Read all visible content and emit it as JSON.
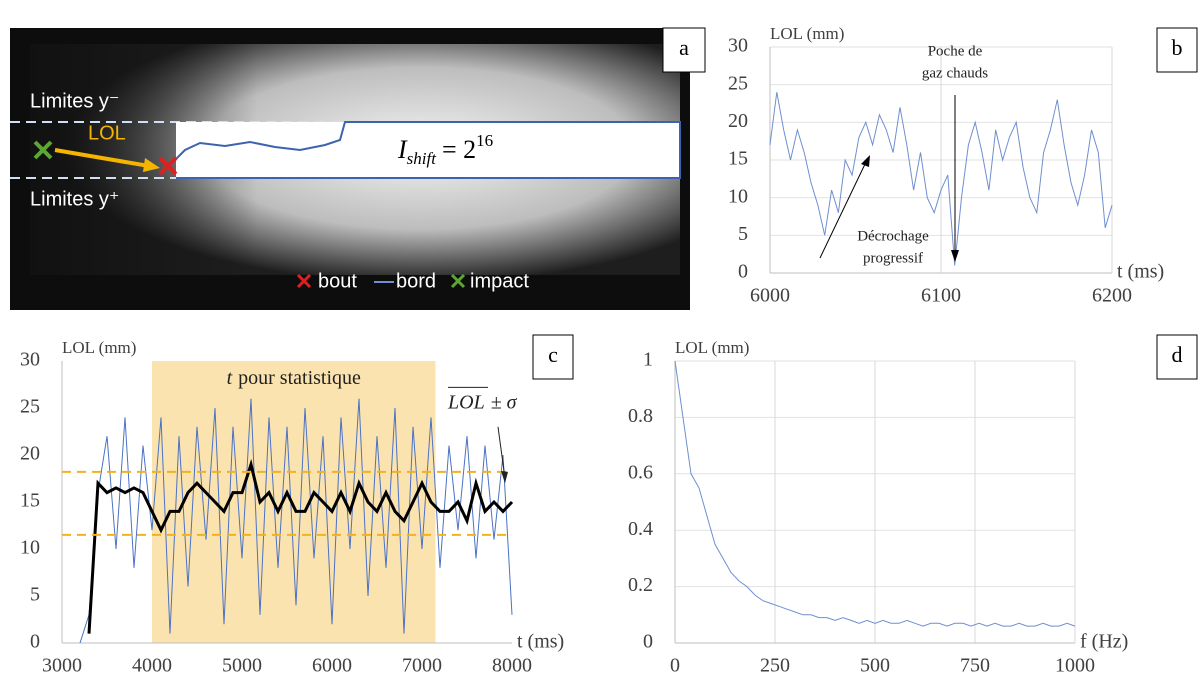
{
  "image_panel": {
    "panel_label": "a",
    "upper_limit_label": "Limites y⁻",
    "lower_limit_label": "Limites y⁺",
    "lol_label": "LOL",
    "formula": {
      "symbol": "I",
      "subscript": "shift",
      "equals": "= 2",
      "exponent": "16"
    },
    "legend": [
      "bout",
      "bord",
      "impact"
    ]
  },
  "chart_data": [
    {
      "type": "line",
      "panel_label": "b",
      "ylabel": "LOL (mm)",
      "xlabel": "t (ms)",
      "xlim": [
        6000,
        6200
      ],
      "ylim": [
        0,
        30
      ],
      "xticks": [
        6000,
        6100,
        6200
      ],
      "yticks": [
        0,
        5,
        10,
        15,
        20,
        25,
        30
      ],
      "grid": true,
      "annotations": [
        {
          "lines": [
            "Poche de",
            "gaz chauds"
          ]
        },
        {
          "lines": [
            "Décrochage",
            "progressif"
          ]
        }
      ],
      "series": [
        {
          "color": "#6f8fd0",
          "x": [
            6000,
            6004,
            6008,
            6012,
            6016,
            6020,
            6024,
            6028,
            6032,
            6036,
            6040,
            6044,
            6048,
            6052,
            6056,
            6060,
            6064,
            6068,
            6072,
            6076,
            6080,
            6084,
            6088,
            6092,
            6096,
            6100,
            6104,
            6108,
            6112,
            6116,
            6120,
            6124,
            6128,
            6132,
            6136,
            6140,
            6144,
            6148,
            6152,
            6156,
            6160,
            6164,
            6168,
            6172,
            6176,
            6180,
            6184,
            6188,
            6192,
            6196,
            6200
          ],
          "values": [
            17,
            24,
            19,
            15,
            19,
            16,
            12,
            9,
            5,
            11,
            8,
            15,
            13,
            18,
            20,
            17,
            21,
            19,
            16,
            22,
            17,
            11,
            16,
            10,
            8,
            11,
            13,
            1,
            10,
            17,
            20,
            16,
            11,
            19,
            15,
            18,
            20,
            14,
            10,
            8,
            16,
            19,
            23,
            17,
            12,
            9,
            13,
            19,
            16,
            6,
            9
          ]
        }
      ]
    },
    {
      "type": "line",
      "panel_label": "c",
      "ylabel": "LOL (mm)",
      "xlabel": "t (ms)",
      "xlim": [
        3000,
        8000
      ],
      "ylim": [
        0,
        30
      ],
      "xticks": [
        3000,
        4000,
        5000,
        6000,
        7000,
        8000
      ],
      "yticks": [
        0,
        5,
        10,
        15,
        20,
        25,
        30
      ],
      "grid": false,
      "xspan": [
        4000,
        7150
      ],
      "xspan_color": "#fbe3b0",
      "xspan_label_var": "t",
      "xspan_label": "pour statistique",
      "hlines": [
        18.2,
        11.5
      ],
      "hline_color": "#f2b21c",
      "mean_label": "LOL",
      "spread_label": "± σ",
      "series": [
        {
          "color": "#4a72c4",
          "x": [
            3200,
            3300,
            3400,
            3500,
            3600,
            3700,
            3800,
            3900,
            4000,
            4100,
            4200,
            4300,
            4400,
            4500,
            4600,
            4700,
            4800,
            4900,
            5000,
            5100,
            5200,
            5300,
            5400,
            5500,
            5600,
            5700,
            5800,
            5900,
            6000,
            6100,
            6200,
            6300,
            6400,
            6500,
            6600,
            6700,
            6800,
            6900,
            7000,
            7100,
            7200,
            7300,
            7400,
            7500,
            7600,
            7700,
            7800,
            7900,
            8000
          ],
          "values": [
            0,
            3,
            16,
            22,
            10,
            24,
            8,
            21,
            12,
            24,
            1,
            22,
            6,
            23,
            11,
            25,
            2,
            23,
            9,
            26,
            3,
            24,
            8,
            23,
            4,
            25,
            9,
            22,
            2,
            24,
            10,
            26,
            5,
            22,
            8,
            25,
            1,
            23,
            10,
            24,
            8,
            21,
            12,
            22,
            9,
            21,
            11,
            20,
            3
          ]
        },
        {
          "color": "#000000",
          "x": [
            3300,
            3400,
            3500,
            3600,
            3700,
            3800,
            3900,
            4000,
            4100,
            4200,
            4300,
            4400,
            4500,
            4600,
            4700,
            4800,
            4900,
            5000,
            5100,
            5200,
            5300,
            5400,
            5500,
            5600,
            5700,
            5800,
            5900,
            6000,
            6100,
            6200,
            6300,
            6400,
            6500,
            6600,
            6700,
            6800,
            6900,
            7000,
            7100,
            7200,
            7300,
            7400,
            7500,
            7600,
            7700,
            7800,
            7900,
            8000
          ],
          "values": [
            1,
            17,
            16,
            16.5,
            16,
            16.5,
            16,
            14,
            12,
            14,
            14,
            16,
            17,
            16,
            15,
            14,
            16,
            16,
            19,
            15,
            16,
            14,
            16,
            14,
            14,
            16,
            15,
            14,
            16,
            14,
            17,
            15,
            14,
            16,
            14,
            13,
            15,
            17,
            15,
            14,
            14,
            15,
            13,
            17,
            14,
            15,
            14,
            15
          ]
        }
      ]
    },
    {
      "type": "line",
      "panel_label": "d",
      "ylabel": "LOL (mm)",
      "xlabel": "f (Hz)",
      "xlim": [
        0,
        1000
      ],
      "ylim": [
        0,
        1
      ],
      "xticks": [
        0,
        250,
        500,
        750,
        1000
      ],
      "yticks": [
        0,
        0.2,
        0.4,
        0.6,
        0.8,
        1
      ],
      "grid": true,
      "series": [
        {
          "color": "#6f8fd0",
          "x": [
            0,
            20,
            40,
            60,
            80,
            100,
            120,
            140,
            160,
            180,
            200,
            220,
            240,
            260,
            280,
            300,
            320,
            340,
            360,
            380,
            400,
            420,
            440,
            460,
            480,
            500,
            520,
            540,
            560,
            580,
            600,
            620,
            640,
            660,
            680,
            700,
            720,
            740,
            760,
            780,
            800,
            820,
            840,
            860,
            880,
            900,
            920,
            940,
            960,
            980,
            1000
          ],
          "values": [
            1,
            0.8,
            0.6,
            0.55,
            0.45,
            0.35,
            0.3,
            0.25,
            0.22,
            0.2,
            0.17,
            0.15,
            0.14,
            0.13,
            0.12,
            0.11,
            0.1,
            0.1,
            0.09,
            0.09,
            0.08,
            0.09,
            0.08,
            0.07,
            0.08,
            0.07,
            0.08,
            0.07,
            0.07,
            0.08,
            0.07,
            0.06,
            0.07,
            0.07,
            0.06,
            0.07,
            0.07,
            0.06,
            0.07,
            0.06,
            0.07,
            0.06,
            0.06,
            0.07,
            0.06,
            0.06,
            0.07,
            0.06,
            0.06,
            0.07,
            0.06
          ]
        }
      ]
    }
  ]
}
